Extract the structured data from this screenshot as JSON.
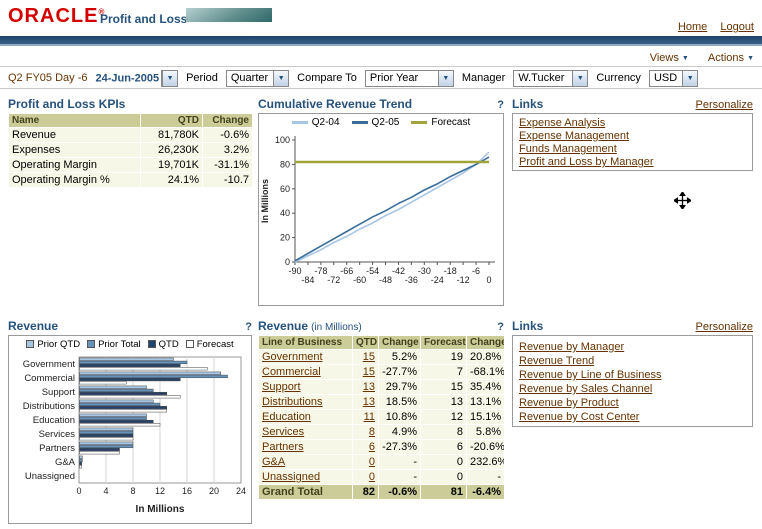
{
  "colors": {
    "link": "#663300",
    "section_title": "#26527C",
    "table_header_bg": "#CCCC99",
    "table_cell_bg": "#F7F7E7",
    "oracle_red": "#D40000",
    "top_bar_blue": "#2A4E77",
    "forecast_olive": "#A3A33C"
  },
  "header": {
    "logo": "ORACLE",
    "logo_mark": "®",
    "app_title": "Profit and Loss",
    "home": "Home",
    "logout": "Logout",
    "views": "Views",
    "actions": "Actions"
  },
  "filters": {
    "context": "Q2 FY05 Day -6",
    "date_value": "24-Jun-2005",
    "period_label": "Period",
    "period_value": "Quarter",
    "compare_label": "Compare To",
    "compare_value": "Prior Year",
    "manager_label": "Manager",
    "manager_value": "W.Tucker",
    "currency_label": "Currency",
    "currency_value": "USD"
  },
  "kpi_table": {
    "title": "Profit and Loss KPIs",
    "columns": [
      "Name",
      "QTD",
      "Change"
    ],
    "rows": [
      [
        "Revenue",
        "81,780K",
        "-0.6%"
      ],
      [
        "Expenses",
        "26,230K",
        "3.2%"
      ],
      [
        "Operating Margin",
        "19,701K",
        "-31.1%"
      ],
      [
        "Operating Margin %",
        "24.1%",
        "-10.7"
      ]
    ]
  },
  "links_top": {
    "title": "Links",
    "personalize": "Personalize",
    "items": [
      "Expense Analysis",
      "Expense Management",
      "Funds Management",
      "Profit and Loss by Manager"
    ]
  },
  "links_bottom": {
    "title": "Links",
    "personalize": "Personalize",
    "items": [
      "Revenue by Manager",
      "Revenue Trend",
      "Revenue by Line of Business",
      "Revenue by Sales Channel",
      "Revenue by Product",
      "Revenue by Cost Center"
    ]
  },
  "revenue_table": {
    "title": "Revenue",
    "title_suffix": "(in Millions)",
    "help": "?",
    "columns": [
      "Line of Business",
      "QTD",
      "Change",
      "Forecast",
      "Change"
    ],
    "rows": [
      [
        "Government",
        "15",
        "5.2%",
        "19",
        "20.8%"
      ],
      [
        "Commercial",
        "15",
        "-27.7%",
        "7",
        "-68.1%"
      ],
      [
        "Support",
        "13",
        "29.7%",
        "15",
        "35.4%"
      ],
      [
        "Distributions",
        "13",
        "18.5%",
        "13",
        "13.1%"
      ],
      [
        "Education",
        "11",
        "10.8%",
        "12",
        "15.1%"
      ],
      [
        "Services",
        "8",
        "4.9%",
        "8",
        "5.8%"
      ],
      [
        "Partners",
        "6",
        "-27.3%",
        "6",
        "-20.6%"
      ],
      [
        "G&A",
        "0",
        "-",
        "0",
        "232.6%"
      ],
      [
        "Unassigned",
        "0",
        "-",
        "0",
        "-"
      ]
    ],
    "grand_total": [
      "Grand Total",
      "82",
      "-0.6%",
      "81",
      "-6.4%"
    ]
  },
  "chart_data": [
    {
      "type": "line",
      "title": "Cumulative Revenue Trend",
      "help": "?",
      "ylabel": "In Millions",
      "ylim": [
        0,
        100
      ],
      "yticks": [
        0,
        20,
        40,
        60,
        80,
        100
      ],
      "x": [
        -90,
        -84,
        -78,
        -72,
        -66,
        -60,
        -54,
        -48,
        -42,
        -36,
        -30,
        -24,
        -18,
        -12,
        -6,
        0
      ],
      "legend_position": "top",
      "grid": false,
      "series": [
        {
          "name": "Q2-04",
          "color": "#A8C6E4",
          "width": 1.6,
          "values": [
            0,
            5,
            10,
            16,
            21,
            27,
            32,
            38,
            43,
            49,
            55,
            61,
            67,
            73,
            80,
            90
          ]
        },
        {
          "name": "Q2-05",
          "color": "#3A6D99",
          "width": 1.6,
          "values": [
            1,
            7,
            13,
            19,
            25,
            31,
            37,
            42,
            48,
            53,
            59,
            64,
            70,
            75,
            80,
            86
          ]
        },
        {
          "name": "Forecast",
          "color": "#A3A33C",
          "width": 2.5,
          "values": [
            82,
            82,
            82,
            82,
            82,
            82,
            82,
            82,
            82,
            82,
            82,
            82,
            82,
            82,
            82,
            82
          ]
        }
      ]
    },
    {
      "type": "bar",
      "title": "Revenue",
      "help": "?",
      "orientation": "horizontal",
      "xlabel": "In Millions",
      "xlim": [
        0,
        24
      ],
      "xticks": [
        0,
        4,
        8,
        12,
        16,
        20,
        24
      ],
      "legend_position": "top",
      "categories": [
        "Government",
        "Commercial",
        "Support",
        "Distributions",
        "Education",
        "Services",
        "Partners",
        "G&A",
        "Unassigned"
      ],
      "series": [
        {
          "name": "Prior QTD",
          "color": "#A8C6E4",
          "values": [
            14,
            21,
            10,
            11,
            10,
            8,
            8,
            0.5,
            0
          ]
        },
        {
          "name": "Prior Total",
          "color": "#6593BE",
          "values": [
            16,
            22,
            11,
            12,
            10,
            8,
            8,
            0.5,
            0
          ]
        },
        {
          "name": "QTD",
          "color": "#26426B",
          "values": [
            15,
            15,
            13,
            13,
            11,
            8,
            6,
            0.4,
            0
          ]
        },
        {
          "name": "Forecast",
          "color": "#FFFFFF",
          "values": [
            19,
            7,
            15,
            13,
            12,
            8,
            6,
            0.4,
            0
          ]
        }
      ]
    }
  ]
}
